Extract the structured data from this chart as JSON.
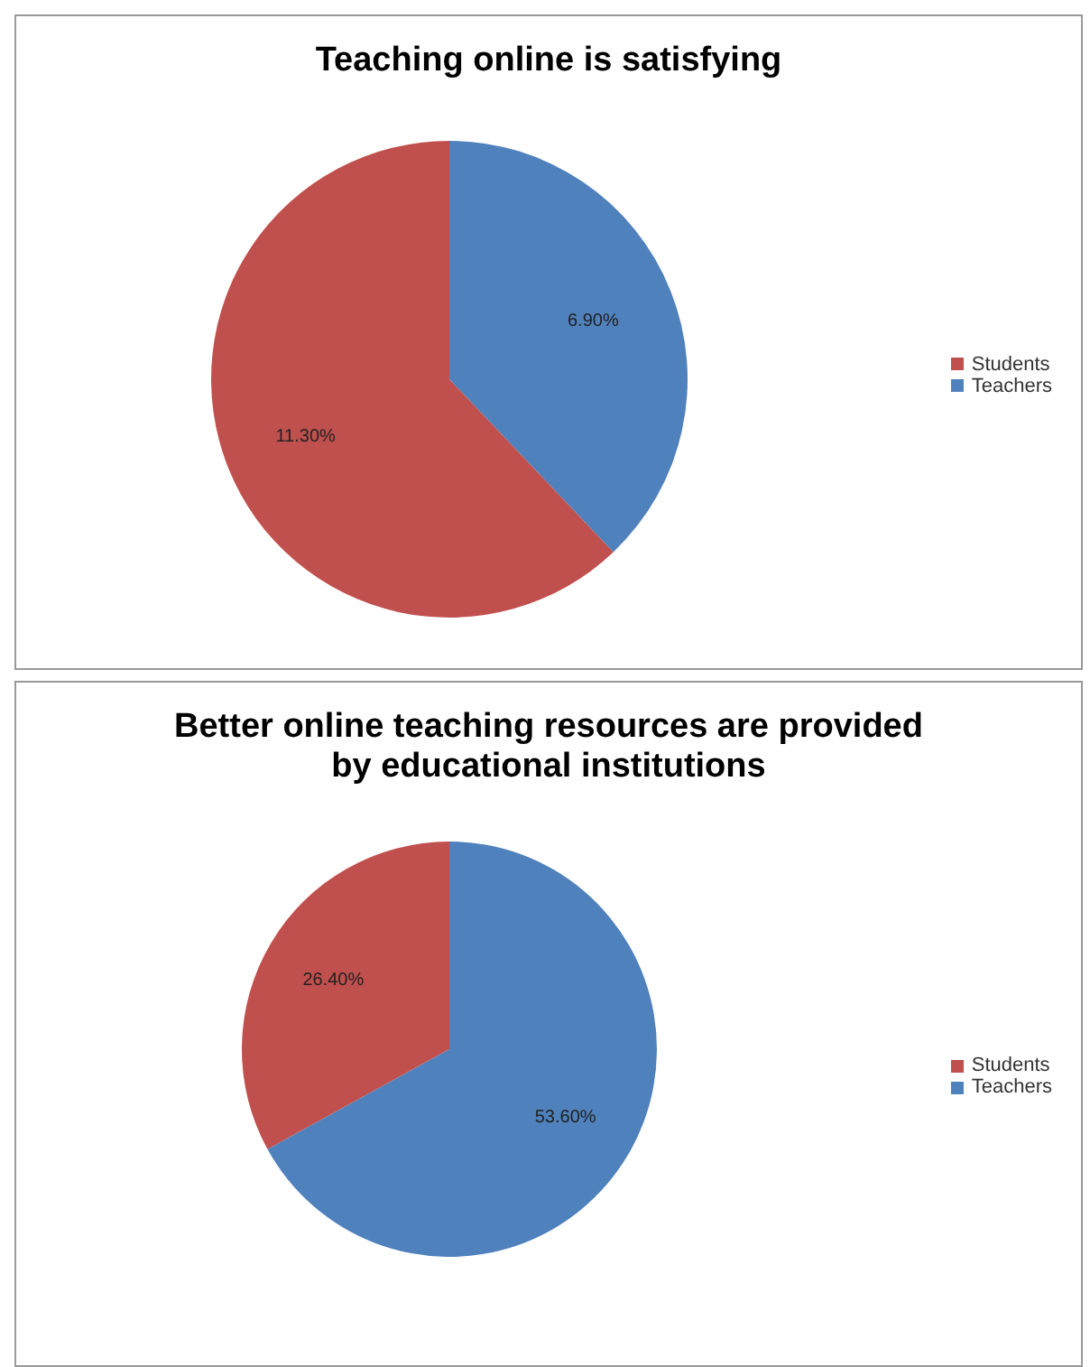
{
  "chart_data": [
    {
      "type": "pie",
      "title": "Teaching online is satisfying",
      "categories": [
        "Teachers",
        "Students"
      ],
      "values": [
        6.9,
        11.3
      ],
      "colors": [
        "#4f81bd",
        "#c0504d"
      ],
      "value_labels": [
        "6.90%",
        "11.30%"
      ],
      "legend": "right"
    },
    {
      "type": "pie",
      "title": "Better online teaching resources are provided by educational institutions",
      "categories": [
        "Teachers",
        "Students"
      ],
      "values": [
        53.6,
        26.4
      ],
      "colors": [
        "#4f81bd",
        "#c0504d"
      ],
      "value_labels": [
        "53.60%",
        "26.40%"
      ],
      "legend": "right"
    }
  ]
}
